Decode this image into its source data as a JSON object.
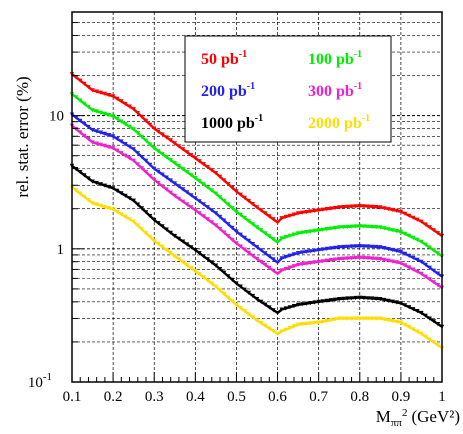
{
  "chart_data": {
    "type": "line",
    "title": "",
    "xlabel": "M",
    "xlabel_sub": "ππ",
    "xlabel_sup": "2",
    "xlabel_unit": "(GeV²)",
    "ylabel": "rel. stat. error (%)",
    "xlim": [
      0.1,
      1.0
    ],
    "ylim": [
      0.1,
      60
    ],
    "y_scale": "log",
    "grid": true,
    "x_ticks": [
      "0.1",
      "0.2",
      "0.3",
      "0.4",
      "0.5",
      "0.6",
      "0.7",
      "0.8",
      "0.9",
      "1"
    ],
    "y_ticks": [
      {
        "value": 10,
        "label": "10"
      },
      {
        "value": 1,
        "label": "1"
      },
      {
        "value": 0.1,
        "label": "10",
        "sup": "-1"
      }
    ],
    "legend_position": "top-right",
    "legend_unit": "pb",
    "legend_unit_sup": "-1",
    "x": [
      0.1,
      0.15,
      0.2,
      0.25,
      0.3,
      0.35,
      0.4,
      0.45,
      0.5,
      0.55,
      0.6,
      0.61,
      0.65,
      0.7,
      0.75,
      0.8,
      0.85,
      0.9,
      0.95,
      1.0
    ],
    "series": [
      {
        "name": "50",
        "color": "#ff0000",
        "values": [
          20.5,
          15.5,
          14.0,
          11.2,
          8.0,
          6.2,
          4.8,
          3.7,
          2.7,
          2.05,
          1.58,
          1.7,
          1.85,
          1.95,
          2.05,
          2.1,
          2.05,
          1.9,
          1.6,
          1.25
        ]
      },
      {
        "name": "100",
        "color": "#00ee00",
        "values": [
          14.5,
          11.0,
          9.9,
          7.9,
          5.7,
          4.4,
          3.4,
          2.6,
          1.9,
          1.45,
          1.12,
          1.2,
          1.31,
          1.38,
          1.45,
          1.48,
          1.45,
          1.34,
          1.13,
          0.88
        ]
      },
      {
        "name": "200",
        "color": "#2222ee",
        "values": [
          10.2,
          7.8,
          7.0,
          5.6,
          4.0,
          3.1,
          2.4,
          1.85,
          1.35,
          1.03,
          0.79,
          0.85,
          0.93,
          0.98,
          1.03,
          1.05,
          1.03,
          0.95,
          0.8,
          0.62
        ]
      },
      {
        "name": "300",
        "color": "#ee22cc",
        "values": [
          8.4,
          6.3,
          5.7,
          4.6,
          3.3,
          2.5,
          1.95,
          1.5,
          1.1,
          0.84,
          0.65,
          0.69,
          0.76,
          0.8,
          0.84,
          0.86,
          0.84,
          0.78,
          0.65,
          0.51
        ]
      },
      {
        "name": "1000",
        "color": "#000000",
        "values": [
          4.2,
          3.2,
          2.85,
          2.3,
          1.65,
          1.25,
          0.98,
          0.75,
          0.55,
          0.42,
          0.33,
          0.35,
          0.38,
          0.4,
          0.42,
          0.43,
          0.42,
          0.39,
          0.33,
          0.26
        ]
      },
      {
        "name": "2000",
        "color": "#ffdd00",
        "values": [
          2.9,
          2.2,
          1.98,
          1.6,
          1.15,
          0.88,
          0.68,
          0.52,
          0.38,
          0.29,
          0.23,
          0.24,
          0.27,
          0.28,
          0.3,
          0.3,
          0.3,
          0.28,
          0.23,
          0.18
        ]
      }
    ]
  }
}
